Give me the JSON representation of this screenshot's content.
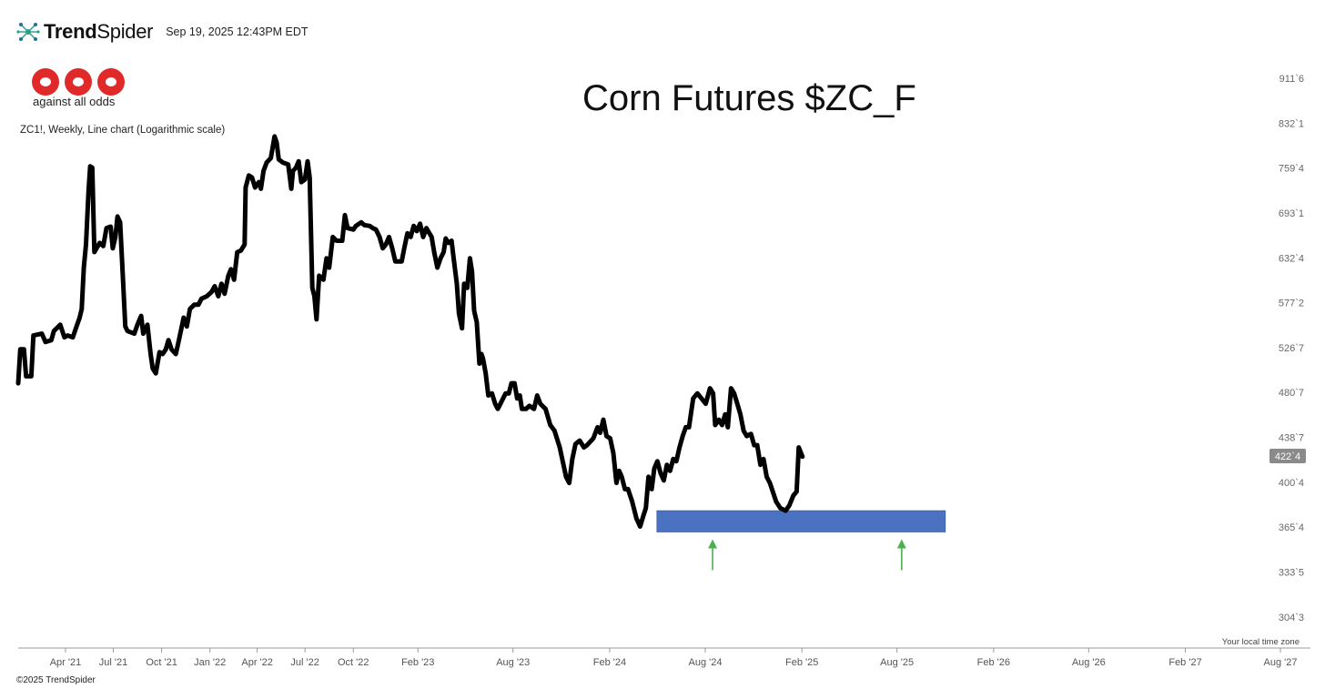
{
  "header": {
    "brand_bold": "Trend",
    "brand_light": "Spider",
    "timestamp": "Sep 19, 2025 12:43PM EDT"
  },
  "logo": {
    "text": "against all odds"
  },
  "chart_desc": "ZC1!, Weekly, Line chart (Logarithmic scale)",
  "footer": {
    "copyright": "©2025 TrendSpider",
    "timezone_note": "Your local time zone"
  },
  "colors": {
    "line": "#000000",
    "zone": "#4a72c0",
    "arrow": "#4caf50",
    "last_badge": "#8a8a8a"
  },
  "chart_data": {
    "type": "line",
    "title": "Corn Futures $ZC_F",
    "scale": "log",
    "grid": false,
    "y_ticks": [
      {
        "label": "911`6",
        "value": 911.75
      },
      {
        "label": "832`1",
        "value": 832.125
      },
      {
        "label": "759`4",
        "value": 759.5
      },
      {
        "label": "693`1",
        "value": 693.125
      },
      {
        "label": "632`4",
        "value": 632.5
      },
      {
        "label": "577`2",
        "value": 577.25
      },
      {
        "label": "526`7",
        "value": 526.875
      },
      {
        "label": "480`7",
        "value": 480.875
      },
      {
        "label": "438`7",
        "value": 438.875
      },
      {
        "label": "400`4",
        "value": 400.5
      },
      {
        "label": "365`4",
        "value": 365.5
      },
      {
        "label": "333`5",
        "value": 333.625
      },
      {
        "label": "304`3",
        "value": 304.375
      }
    ],
    "x_ticks": [
      {
        "label": "Apr '21",
        "date": "2021-04-01"
      },
      {
        "label": "Jul '21",
        "date": "2021-07-01"
      },
      {
        "label": "Oct '21",
        "date": "2021-10-01"
      },
      {
        "label": "Jan '22",
        "date": "2022-01-01"
      },
      {
        "label": "Apr '22",
        "date": "2022-04-01"
      },
      {
        "label": "Jul '22",
        "date": "2022-07-01"
      },
      {
        "label": "Oct '22",
        "date": "2022-10-01"
      },
      {
        "label": "Feb '23",
        "date": "2023-02-01"
      },
      {
        "label": "Aug '23",
        "date": "2023-08-01"
      },
      {
        "label": "Feb '24",
        "date": "2024-02-01"
      },
      {
        "label": "Aug '24",
        "date": "2024-08-01"
      },
      {
        "label": "Feb '25",
        "date": "2025-02-01"
      },
      {
        "label": "Aug '25",
        "date": "2025-08-01"
      },
      {
        "label": "Feb '26",
        "date": "2026-02-01"
      },
      {
        "label": "Aug '26",
        "date": "2026-08-01"
      },
      {
        "label": "Feb '27",
        "date": "2027-02-01"
      },
      {
        "label": "Aug '27",
        "date": "2027-08-01"
      }
    ],
    "last_price": {
      "label": "422`4",
      "value": 422.5
    },
    "support_zone": {
      "low": 362,
      "high": 378,
      "start": "2024-05-01",
      "end": "2025-11-01"
    },
    "arrows": [
      {
        "date": "2024-08-15",
        "price": 362
      },
      {
        "date": "2025-08-10",
        "price": 362
      }
    ],
    "series": [
      {
        "points": [
          [
            "2021-01-01",
            490
          ],
          [
            "2021-01-05",
            525
          ],
          [
            "2021-01-12",
            525
          ],
          [
            "2021-01-16",
            497
          ],
          [
            "2021-01-26",
            497
          ],
          [
            "2021-01-30",
            540
          ],
          [
            "2021-02-15",
            542
          ],
          [
            "2021-02-22",
            533
          ],
          [
            "2021-03-05",
            535
          ],
          [
            "2021-03-10",
            545
          ],
          [
            "2021-03-22",
            552
          ],
          [
            "2021-03-30",
            538
          ],
          [
            "2021-04-05",
            540
          ],
          [
            "2021-04-15",
            538
          ],
          [
            "2021-04-22",
            550
          ],
          [
            "2021-04-28",
            560
          ],
          [
            "2021-05-02",
            570
          ],
          [
            "2021-05-06",
            620
          ],
          [
            "2021-05-10",
            650
          ],
          [
            "2021-05-15",
            725
          ],
          [
            "2021-05-18",
            762
          ],
          [
            "2021-05-22",
            760
          ],
          [
            "2021-05-26",
            640
          ],
          [
            "2021-06-05",
            652
          ],
          [
            "2021-06-12",
            648
          ],
          [
            "2021-06-18",
            672
          ],
          [
            "2021-06-26",
            674
          ],
          [
            "2021-06-30",
            645
          ],
          [
            "2021-07-05",
            660
          ],
          [
            "2021-07-09",
            688
          ],
          [
            "2021-07-14",
            680
          ],
          [
            "2021-07-18",
            625
          ],
          [
            "2021-07-24",
            550
          ],
          [
            "2021-07-28",
            545
          ],
          [
            "2021-08-10",
            542
          ],
          [
            "2021-08-16",
            552
          ],
          [
            "2021-08-23",
            562
          ],
          [
            "2021-08-27",
            542
          ],
          [
            "2021-09-04",
            552
          ],
          [
            "2021-09-10",
            520
          ],
          [
            "2021-09-14",
            505
          ],
          [
            "2021-09-20",
            500
          ],
          [
            "2021-09-27",
            522
          ],
          [
            "2021-10-03",
            520
          ],
          [
            "2021-10-09",
            525
          ],
          [
            "2021-10-14",
            535
          ],
          [
            "2021-10-20",
            525
          ],
          [
            "2021-10-28",
            520
          ],
          [
            "2021-11-03",
            535
          ],
          [
            "2021-11-12",
            560
          ],
          [
            "2021-11-18",
            550
          ],
          [
            "2021-11-24",
            570
          ],
          [
            "2021-12-02",
            575
          ],
          [
            "2021-12-10",
            575
          ],
          [
            "2021-12-16",
            582
          ],
          [
            "2021-12-26",
            585
          ],
          [
            "2022-01-04",
            590
          ],
          [
            "2022-01-10",
            597
          ],
          [
            "2022-01-17",
            585
          ],
          [
            "2022-01-23",
            600
          ],
          [
            "2022-01-29",
            588
          ],
          [
            "2022-02-05",
            610
          ],
          [
            "2022-02-10",
            618
          ],
          [
            "2022-02-16",
            605
          ],
          [
            "2022-02-22",
            640
          ],
          [
            "2022-03-01",
            642
          ],
          [
            "2022-03-08",
            650
          ],
          [
            "2022-03-10",
            730
          ],
          [
            "2022-03-16",
            748
          ],
          [
            "2022-03-22",
            745
          ],
          [
            "2022-03-28",
            730
          ],
          [
            "2022-04-04",
            738
          ],
          [
            "2022-04-08",
            728
          ],
          [
            "2022-04-13",
            755
          ],
          [
            "2022-04-19",
            768
          ],
          [
            "2022-04-27",
            775
          ],
          [
            "2022-05-04",
            810
          ],
          [
            "2022-05-08",
            800
          ],
          [
            "2022-05-12",
            773
          ],
          [
            "2022-05-20",
            768
          ],
          [
            "2022-05-30",
            765
          ],
          [
            "2022-06-05",
            728
          ],
          [
            "2022-06-08",
            755
          ],
          [
            "2022-06-14",
            760
          ],
          [
            "2022-06-19",
            770
          ],
          [
            "2022-06-24",
            738
          ],
          [
            "2022-07-01",
            742
          ],
          [
            "2022-07-06",
            770
          ],
          [
            "2022-07-10",
            745
          ],
          [
            "2022-07-15",
            595
          ],
          [
            "2022-07-19",
            585
          ],
          [
            "2022-07-23",
            558
          ],
          [
            "2022-07-28",
            610
          ],
          [
            "2022-08-05",
            605
          ],
          [
            "2022-08-11",
            632
          ],
          [
            "2022-08-16",
            620
          ],
          [
            "2022-08-23",
            660
          ],
          [
            "2022-08-30",
            655
          ],
          [
            "2022-09-10",
            655
          ],
          [
            "2022-09-15",
            690
          ],
          [
            "2022-09-20",
            672
          ],
          [
            "2022-10-01",
            670
          ],
          [
            "2022-10-06",
            675
          ],
          [
            "2022-10-16",
            680
          ],
          [
            "2022-10-22",
            676
          ],
          [
            "2022-11-01",
            675
          ],
          [
            "2022-11-07",
            672
          ],
          [
            "2022-11-13",
            670
          ],
          [
            "2022-11-20",
            660
          ],
          [
            "2022-11-26",
            645
          ],
          [
            "2022-12-02",
            650
          ],
          [
            "2022-12-08",
            660
          ],
          [
            "2022-12-14",
            645
          ],
          [
            "2022-12-20",
            628
          ],
          [
            "2023-01-01",
            628
          ],
          [
            "2023-01-06",
            645
          ],
          [
            "2023-01-12",
            665
          ],
          [
            "2023-01-18",
            660
          ],
          [
            "2023-01-24",
            675
          ],
          [
            "2023-01-30",
            668
          ],
          [
            "2023-02-05",
            678
          ],
          [
            "2023-02-11",
            660
          ],
          [
            "2023-02-17",
            672
          ],
          [
            "2023-02-27",
            660
          ],
          [
            "2023-03-04",
            640
          ],
          [
            "2023-03-10",
            620
          ],
          [
            "2023-03-16",
            632
          ],
          [
            "2023-03-22",
            640
          ],
          [
            "2023-03-26",
            658
          ],
          [
            "2023-03-31",
            652
          ],
          [
            "2023-04-06",
            655
          ],
          [
            "2023-04-10",
            632
          ],
          [
            "2023-04-16",
            600
          ],
          [
            "2023-04-20",
            565
          ],
          [
            "2023-04-26",
            548
          ],
          [
            "2023-04-30",
            600
          ],
          [
            "2023-05-06",
            595
          ],
          [
            "2023-05-11",
            632
          ],
          [
            "2023-05-15",
            615
          ],
          [
            "2023-05-19",
            568
          ],
          [
            "2023-05-24",
            555
          ],
          [
            "2023-05-29",
            510
          ],
          [
            "2023-06-02",
            520
          ],
          [
            "2023-06-05",
            515
          ],
          [
            "2023-06-10",
            500
          ],
          [
            "2023-06-15",
            478
          ],
          [
            "2023-06-22",
            480
          ],
          [
            "2023-06-28",
            470
          ],
          [
            "2023-07-03",
            465
          ],
          [
            "2023-07-08",
            470
          ],
          [
            "2023-07-18",
            480
          ],
          [
            "2023-07-24",
            480
          ],
          [
            "2023-07-29",
            490
          ],
          [
            "2023-08-04",
            490
          ],
          [
            "2023-08-09",
            475
          ],
          [
            "2023-08-14",
            478
          ],
          [
            "2023-08-18",
            465
          ],
          [
            "2023-08-26",
            465
          ],
          [
            "2023-09-01",
            468
          ],
          [
            "2023-09-10",
            465
          ],
          [
            "2023-09-16",
            478
          ],
          [
            "2023-09-22",
            470
          ],
          [
            "2023-10-02",
            465
          ],
          [
            "2023-10-11",
            450
          ],
          [
            "2023-10-19",
            445
          ],
          [
            "2023-10-29",
            430
          ],
          [
            "2023-11-10",
            405
          ],
          [
            "2023-11-16",
            400
          ],
          [
            "2023-11-22",
            420
          ],
          [
            "2023-11-28",
            433
          ],
          [
            "2023-12-06",
            436
          ],
          [
            "2023-12-14",
            430
          ],
          [
            "2023-12-20",
            432
          ],
          [
            "2024-01-01",
            438
          ],
          [
            "2024-01-09",
            448
          ],
          [
            "2024-01-14",
            443
          ],
          [
            "2024-01-20",
            455
          ],
          [
            "2024-01-26",
            440
          ],
          [
            "2024-02-02",
            438
          ],
          [
            "2024-02-08",
            425
          ],
          [
            "2024-02-14",
            400
          ],
          [
            "2024-02-19",
            410
          ],
          [
            "2024-02-24",
            405
          ],
          [
            "2024-03-01",
            395
          ],
          [
            "2024-03-07",
            395
          ],
          [
            "2024-03-15",
            385
          ],
          [
            "2024-03-23",
            372
          ],
          [
            "2024-03-30",
            366
          ],
          [
            "2024-04-05",
            374
          ],
          [
            "2024-04-10",
            380
          ],
          [
            "2024-04-15",
            405
          ],
          [
            "2024-04-21",
            395
          ],
          [
            "2024-04-26",
            412
          ],
          [
            "2024-05-02",
            418
          ],
          [
            "2024-05-08",
            408
          ],
          [
            "2024-05-14",
            402
          ],
          [
            "2024-05-20",
            415
          ],
          [
            "2024-05-26",
            410
          ],
          [
            "2024-06-01",
            420
          ],
          [
            "2024-06-07",
            418
          ],
          [
            "2024-06-13",
            430
          ],
          [
            "2024-06-19",
            440
          ],
          [
            "2024-06-25",
            448
          ],
          [
            "2024-07-01",
            448
          ],
          [
            "2024-07-09",
            475
          ],
          [
            "2024-07-17",
            480
          ],
          [
            "2024-07-25",
            475
          ],
          [
            "2024-08-02",
            470
          ],
          [
            "2024-08-10",
            485
          ],
          [
            "2024-08-16",
            480
          ],
          [
            "2024-08-20",
            450
          ],
          [
            "2024-08-27",
            455
          ],
          [
            "2024-09-02",
            450
          ],
          [
            "2024-09-08",
            460
          ],
          [
            "2024-09-13",
            448
          ],
          [
            "2024-09-19",
            485
          ],
          [
            "2024-09-25",
            480
          ],
          [
            "2024-10-01",
            470
          ],
          [
            "2024-10-07",
            460
          ],
          [
            "2024-10-13",
            445
          ],
          [
            "2024-10-19",
            440
          ],
          [
            "2024-10-27",
            442
          ],
          [
            "2024-11-02",
            432
          ],
          [
            "2024-11-08",
            432
          ],
          [
            "2024-11-14",
            415
          ],
          [
            "2024-11-20",
            420
          ],
          [
            "2024-11-26",
            405
          ],
          [
            "2024-12-02",
            400
          ],
          [
            "2024-12-14",
            385
          ],
          [
            "2024-12-22",
            380
          ],
          [
            "2025-01-01",
            378
          ],
          [
            "2025-01-08",
            382
          ],
          [
            "2025-01-16",
            390
          ],
          [
            "2025-01-22",
            393
          ],
          [
            "2025-01-26",
            430
          ],
          [
            "2025-02-02",
            422
          ]
        ]
      }
    ]
  }
}
